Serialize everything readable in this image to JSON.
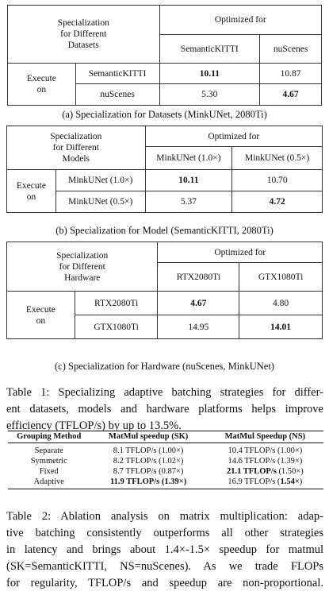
{
  "table_a": {
    "header_left": [
      "Specialization",
      "for Different",
      "Datasets"
    ],
    "optimized_for": "Optimized for",
    "col1": "SemanticKITTI",
    "col2": "nuScenes",
    "execute_on": [
      "Execute",
      "on"
    ],
    "rows": [
      {
        "label": "SemanticKITTI",
        "v1": "10.11",
        "v2": "10.87"
      },
      {
        "label": "nuScenes",
        "v1": "5.30",
        "v2": "4.67"
      }
    ],
    "caption": "(a) Specialization for Datasets (MinkUNet, 2080Ti)"
  },
  "table_b": {
    "header_left": [
      "Specialization",
      "for Different",
      "Models"
    ],
    "optimized_for": "Optimized for",
    "col1": "MinkUNet (1.0×)",
    "col2": "MinkUNet (0.5×)",
    "execute_on": [
      "Execute",
      "on"
    ],
    "rows": [
      {
        "label": "MinkUNet (1.0×)",
        "v1": "10.11",
        "v2": "10.70"
      },
      {
        "label": "MinkUNet (0.5×)",
        "v1": "5.37",
        "v2": "4.72"
      }
    ],
    "caption": "(b) Specialization for Model (SemanticKITTI, 2080Ti)"
  },
  "table_c": {
    "header_left": [
      "Specialization",
      "for Different",
      "Hardware"
    ],
    "optimized_for": "Optimized for",
    "col1": "RTX2080Ti",
    "col2": "GTX1080Ti",
    "execute_on": [
      "Execute",
      "on"
    ],
    "rows": [
      {
        "label": "RTX2080Ti",
        "v1": "4.67",
        "v2": "4.80"
      },
      {
        "label": "GTX1080Ti",
        "v1": "14.95",
        "v2": "14.01"
      }
    ],
    "caption": "(c) Specialization for Hardware (nuScenes, MinkUNet)"
  },
  "table1_caption": [
    "Table 1: Specializing adaptive batching strategies for differ-",
    "ent datasets, models and hardware platforms helps improve",
    "efficiency (TFLOP/s) by up to 13.5%."
  ],
  "table2": {
    "headers": [
      "Grouping Method",
      "MatMul speedup (SK)",
      "MatMul Speedup (NS)"
    ],
    "rows": [
      {
        "method": "Separate",
        "sk": "8.1 TFLOP/s (1.00×)",
        "ns": "10.4 TFLOP/s (1.00×)"
      },
      {
        "method": "Symmetric",
        "sk": "8.2 TFLOP/s (1.02×)",
        "ns": "14.6 TFLOP/s (1.39×)"
      },
      {
        "method": "Fixed",
        "sk": "8.7 TFLOP/s (0.87×)",
        "ns_bold": "21.1 TFLOP/s",
        "ns_rest": " (1.50×)"
      },
      {
        "method": "Adaptive",
        "sk_bold": "11.9 TFLOP/s (1.39×)",
        "ns_pre": "16.9 TFLOP/s (",
        "ns_bold": "1.54×",
        "ns_post": ")"
      }
    ]
  },
  "table2_caption": [
    "Table 2: Ablation analysis on matrix multiplication: adap-",
    "tive batching consistently outperforms all other strategies",
    "in latency and brings about 1.4×-1.5× speedup for matmul",
    "(SK=SemanticKITTI, NS=nuScenes). As we trade FLOPs",
    "for regularity, TFLOP/s and speedup are non-proportional."
  ]
}
